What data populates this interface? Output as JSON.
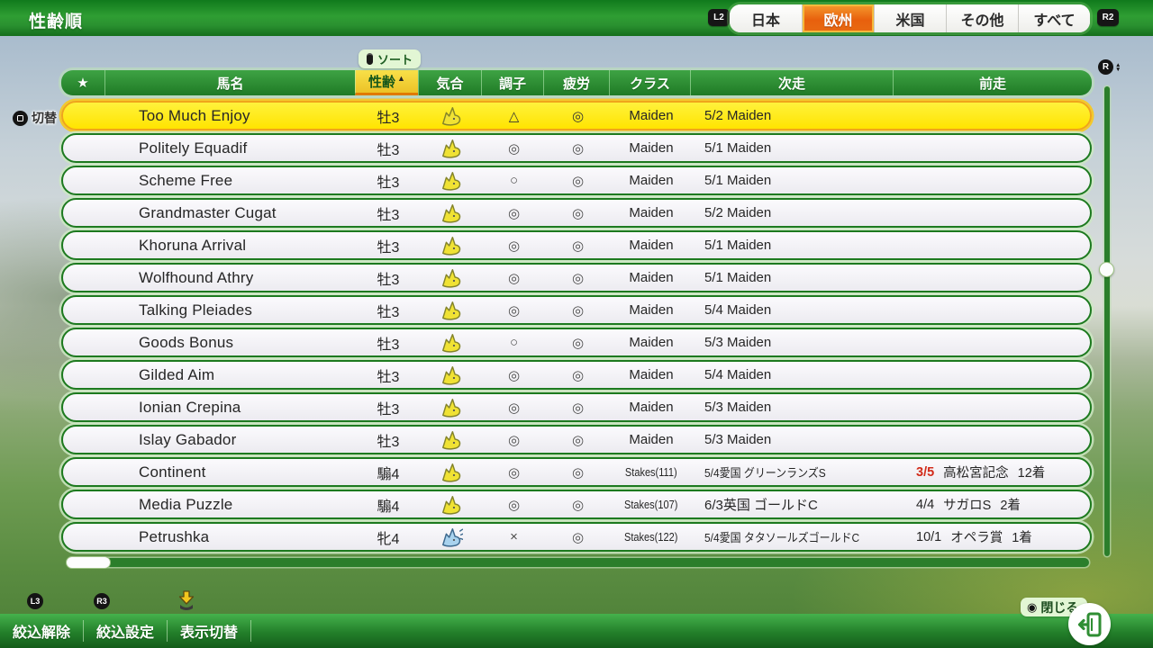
{
  "window": {
    "title": "性齢順"
  },
  "top_tabs": {
    "l2_label": "L2",
    "r2_label": "R2",
    "tabs": [
      {
        "label": "日本",
        "selected": false
      },
      {
        "label": "欧州",
        "selected": true
      },
      {
        "label": "米国",
        "selected": false
      },
      {
        "label": "その他",
        "selected": false
      },
      {
        "label": "すべて",
        "selected": false
      }
    ]
  },
  "sort_tooltip": {
    "label": "ソート"
  },
  "switch_hint": {
    "label": "切替"
  },
  "table": {
    "headers": {
      "star": "★",
      "name": "馬名",
      "sex_age": "性齢",
      "sort_arrow": "▲",
      "spirit": "気合",
      "condition": "調子",
      "fatigue": "疲労",
      "class": "クラス",
      "next": "次走",
      "prev": "前走"
    },
    "rows": [
      {
        "name": "Too Much Enjoy",
        "sex_age": "牡3",
        "spirit": "horse-up",
        "condition": "△",
        "fatigue": "◎",
        "class": "Maiden",
        "next": "5/2 Maiden",
        "prev_date": "",
        "prev_date_red": false,
        "prev_race": "",
        "prev_result": "",
        "selected": true
      },
      {
        "name": "Politely Equadif",
        "sex_age": "牡3",
        "spirit": "horse-up",
        "condition": "◎",
        "fatigue": "◎",
        "class": "Maiden",
        "next": "5/1 Maiden",
        "prev_date": "",
        "prev_date_red": false,
        "prev_race": "",
        "prev_result": "",
        "selected": false
      },
      {
        "name": "Scheme Free",
        "sex_age": "牡3",
        "spirit": "horse-up",
        "condition": "○",
        "fatigue": "◎",
        "class": "Maiden",
        "next": "5/1 Maiden",
        "prev_date": "",
        "prev_date_red": false,
        "prev_race": "",
        "prev_result": "",
        "selected": false
      },
      {
        "name": "Grandmaster Cugat",
        "sex_age": "牡3",
        "spirit": "horse-up",
        "condition": "◎",
        "fatigue": "◎",
        "class": "Maiden",
        "next": "5/2 Maiden",
        "prev_date": "",
        "prev_date_red": false,
        "prev_race": "",
        "prev_result": "",
        "selected": false
      },
      {
        "name": "Khoruna Arrival",
        "sex_age": "牡3",
        "spirit": "horse-up",
        "condition": "◎",
        "fatigue": "◎",
        "class": "Maiden",
        "next": "5/1 Maiden",
        "prev_date": "",
        "prev_date_red": false,
        "prev_race": "",
        "prev_result": "",
        "selected": false
      },
      {
        "name": "Wolfhound Athry",
        "sex_age": "牡3",
        "spirit": "horse-up",
        "condition": "◎",
        "fatigue": "◎",
        "class": "Maiden",
        "next": "5/1 Maiden",
        "prev_date": "",
        "prev_date_red": false,
        "prev_race": "",
        "prev_result": "",
        "selected": false
      },
      {
        "name": "Talking Pleiades",
        "sex_age": "牡3",
        "spirit": "horse-up",
        "condition": "◎",
        "fatigue": "◎",
        "class": "Maiden",
        "next": "5/4 Maiden",
        "prev_date": "",
        "prev_date_red": false,
        "prev_race": "",
        "prev_result": "",
        "selected": false
      },
      {
        "name": "Goods Bonus",
        "sex_age": "牡3",
        "spirit": "horse-up",
        "condition": "○",
        "fatigue": "◎",
        "class": "Maiden",
        "next": "5/3 Maiden",
        "prev_date": "",
        "prev_date_red": false,
        "prev_race": "",
        "prev_result": "",
        "selected": false
      },
      {
        "name": "Gilded Aim",
        "sex_age": "牡3",
        "spirit": "horse-up",
        "condition": "◎",
        "fatigue": "◎",
        "class": "Maiden",
        "next": "5/4 Maiden",
        "prev_date": "",
        "prev_date_red": false,
        "prev_race": "",
        "prev_result": "",
        "selected": false
      },
      {
        "name": "Ionian Crepina",
        "sex_age": "牡3",
        "spirit": "horse-up",
        "condition": "◎",
        "fatigue": "◎",
        "class": "Maiden",
        "next": "5/3 Maiden",
        "prev_date": "",
        "prev_date_red": false,
        "prev_race": "",
        "prev_result": "",
        "selected": false
      },
      {
        "name": "Islay Gabador",
        "sex_age": "牡3",
        "spirit": "horse-up",
        "condition": "◎",
        "fatigue": "◎",
        "class": "Maiden",
        "next": "5/3 Maiden",
        "prev_date": "",
        "prev_date_red": false,
        "prev_race": "",
        "prev_result": "",
        "selected": false
      },
      {
        "name": "Continent",
        "sex_age": "騸4",
        "spirit": "horse-up",
        "condition": "◎",
        "fatigue": "◎",
        "class": "Stakes(111)",
        "next": "5/4愛国 グリーンランズS",
        "prev_date": "3/5",
        "prev_date_red": true,
        "prev_race": "高松宮記念",
        "prev_result": "12着",
        "selected": false
      },
      {
        "name": "Media Puzzle",
        "sex_age": "騸4",
        "spirit": "horse-up",
        "condition": "◎",
        "fatigue": "◎",
        "class": "Stakes(107)",
        "next": "6/3英国 ゴールドC",
        "prev_date": "4/4",
        "prev_date_red": false,
        "prev_race": "サガロS",
        "prev_result": "2着",
        "selected": false
      },
      {
        "name": "Petrushka",
        "sex_age": "牝4",
        "spirit": "horse-shake",
        "condition": "×",
        "fatigue": "◎",
        "class": "Stakes(122)",
        "next": "5/4愛国 タタソールズゴールドC",
        "prev_date": "10/1",
        "prev_date_red": false,
        "prev_race": "オペラ賞",
        "prev_result": "1着",
        "selected": false
      }
    ]
  },
  "bottom_bar": {
    "l3_label": "L3",
    "r3_label": "R3",
    "items": [
      {
        "label": "絞込解除"
      },
      {
        "label": "絞込設定"
      },
      {
        "label": "表示切替"
      }
    ],
    "close_label": "閉じる",
    "close_glyph": "◉"
  },
  "colors": {
    "accent_green": "#2f9e33",
    "selected_yellow": "#ffe400",
    "tab_orange": "#e8600d",
    "alert_red": "#d22b1a"
  }
}
